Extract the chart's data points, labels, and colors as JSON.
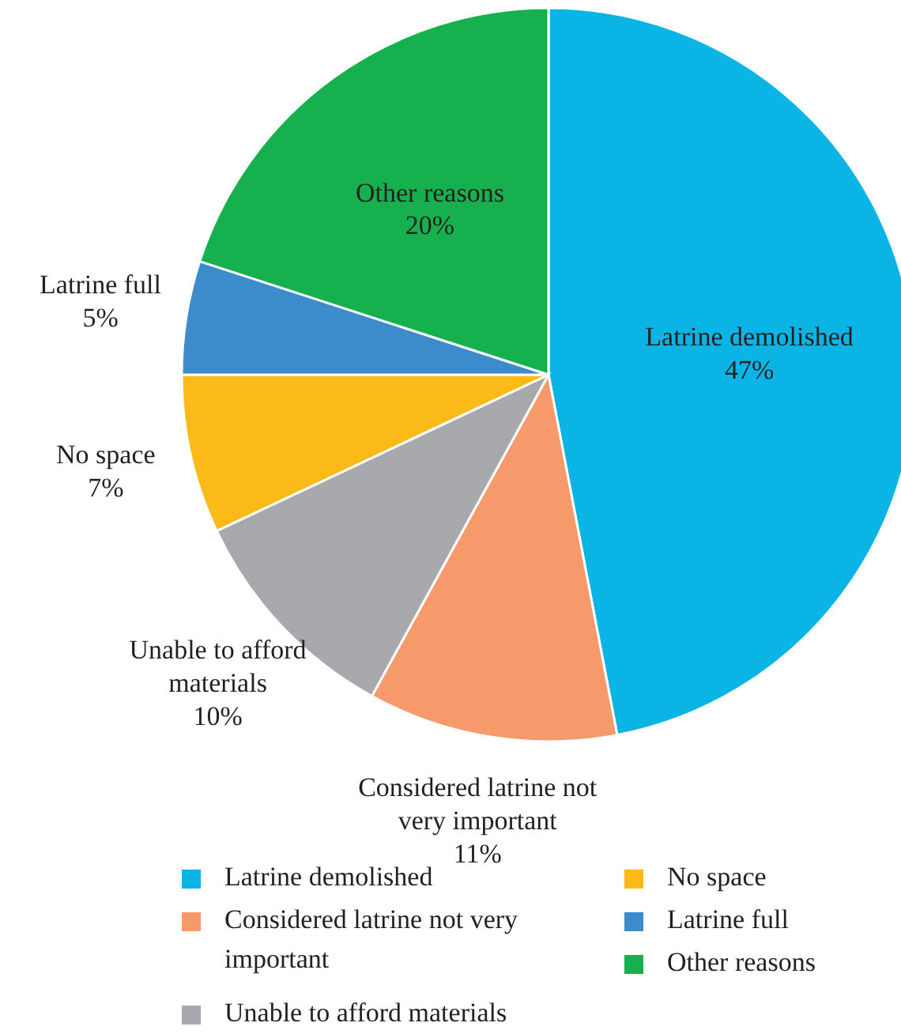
{
  "chart_data": {
    "type": "pie",
    "categories": [
      "Latrine demolished",
      "Considered latrine not very important",
      "Unable to afford materials",
      "No space",
      "Latrine full",
      "Other reasons"
    ],
    "values": [
      47,
      11,
      10,
      7,
      5,
      20
    ],
    "colors": [
      "#0ab4e4",
      "#f79a6b",
      "#a7a9ac",
      "#fbba17",
      "#3c8ccc",
      "#17b04f"
    ],
    "value_labels": [
      "47%",
      "11%",
      "10%",
      "7%",
      "5%",
      "20%"
    ],
    "legend": "bottom"
  }
}
